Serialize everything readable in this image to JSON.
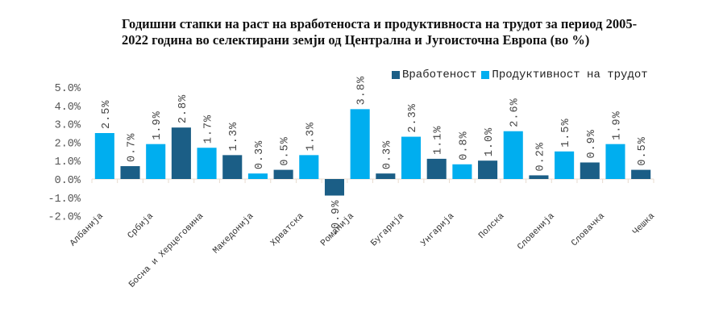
{
  "chart_data": {
    "type": "bar",
    "title": "Годишни стапки на раст на вработеноста и продуктивноста на трудот за период 2005-2022 година во селектирани земји од Централна и Југоисточна Европа (во  %)",
    "xlabel": "",
    "ylabel": "",
    "ylim": [
      -2.0,
      5.0
    ],
    "yticks": [
      "5.0%",
      "4.0%",
      "3.0%",
      "2.0%",
      "1.0%",
      "0.0%",
      "-1.0%",
      "-2.0%"
    ],
    "ytick_values": [
      5,
      4,
      3,
      2,
      1,
      0,
      -1,
      -2
    ],
    "grid": false,
    "legend_position": "top-right",
    "series": [
      {
        "name": "Вработеност",
        "color": "#1b5e86"
      },
      {
        "name": "Продуктивност на трудот",
        "color": "#00aeef"
      }
    ],
    "categories": [
      "Албанија",
      "Србија",
      "Босна и Херцеговина",
      "Македонија",
      "Хрватска",
      "Романија",
      "Бугарија",
      "Унгарија",
      "Полска",
      "Словенија",
      "Словачка",
      "Чешка"
    ],
    "bars": [
      {
        "series": 1,
        "value": 2.5,
        "label": "2.5%"
      },
      {
        "series": 0,
        "value": 0.7,
        "label": "0.7%"
      },
      {
        "series": 1,
        "value": 1.9,
        "label": "1.9%"
      },
      {
        "series": 0,
        "value": 2.8,
        "label": "2.8%"
      },
      {
        "series": 1,
        "value": 1.7,
        "label": "1.7%"
      },
      {
        "series": 0,
        "value": 1.3,
        "label": "1.3%"
      },
      {
        "series": 1,
        "value": 0.3,
        "label": "0.3%"
      },
      {
        "series": 0,
        "value": 0.5,
        "label": "0.5%"
      },
      {
        "series": 1,
        "value": 1.3,
        "label": "1.3%"
      },
      {
        "series": 0,
        "value": -0.9,
        "label": "-0.9%"
      },
      {
        "series": 1,
        "value": 3.8,
        "label": "3.8%"
      },
      {
        "series": 0,
        "value": 0.3,
        "label": "0.3%"
      },
      {
        "series": 1,
        "value": 2.3,
        "label": "2.3%"
      },
      {
        "series": 0,
        "value": 1.1,
        "label": "1.1%"
      },
      {
        "series": 1,
        "value": 0.8,
        "label": "0.8%"
      },
      {
        "series": 0,
        "value": 1.0,
        "label": "1.0%"
      },
      {
        "series": 1,
        "value": 2.6,
        "label": "2.6%"
      },
      {
        "series": 0,
        "value": 0.2,
        "label": "0.2%"
      },
      {
        "series": 1,
        "value": 1.5,
        "label": "1.5%"
      },
      {
        "series": 0,
        "value": 0.9,
        "label": "0.9%"
      },
      {
        "series": 1,
        "value": 1.9,
        "label": "1.9%"
      },
      {
        "series": 0,
        "value": 0.5,
        "label": "0.5%"
      }
    ]
  }
}
